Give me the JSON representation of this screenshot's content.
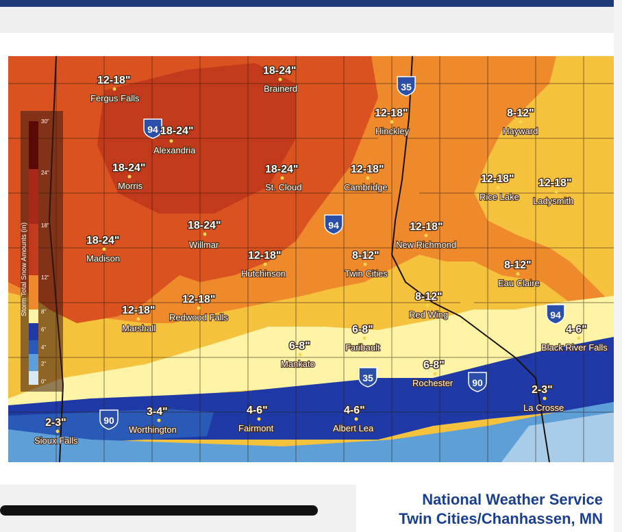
{
  "header": {
    "partial_text": ""
  },
  "legend": {
    "title": "Storm Total Snow Amounts (in)",
    "ticks": [
      "30\"",
      "24\"",
      "18\"",
      "12\"",
      "8\"",
      "6\"",
      "4\"",
      "2\"",
      "0\""
    ]
  },
  "locations": [
    {
      "city": "Fergus Falls",
      "amount": "12-18\""
    },
    {
      "city": "Brainerd",
      "amount": "18-24\""
    },
    {
      "city": "Alexandria",
      "amount": "18-24\""
    },
    {
      "city": "Hinckley",
      "amount": "12-18\""
    },
    {
      "city": "Hayward",
      "amount": "8-12\""
    },
    {
      "city": "Morris",
      "amount": "18-24\""
    },
    {
      "city": "St. Cloud",
      "amount": "18-24\""
    },
    {
      "city": "Cambridge",
      "amount": "12-18\""
    },
    {
      "city": "Rice Lake",
      "amount": "12-18\""
    },
    {
      "city": "Ladysmith",
      "amount": "12-18\""
    },
    {
      "city": "Willmar",
      "amount": "18-24\""
    },
    {
      "city": "New Richmond",
      "amount": "12-18\""
    },
    {
      "city": "Madison",
      "amount": "18-24\""
    },
    {
      "city": "Hutchinson",
      "amount": "12-18\""
    },
    {
      "city": "Twin Cities",
      "amount": "8-12\""
    },
    {
      "city": "Eau Claire",
      "amount": "8-12\""
    },
    {
      "city": "Redwood Falls",
      "amount": "12-18\""
    },
    {
      "city": "Marshall",
      "amount": "12-18\""
    },
    {
      "city": "Red Wing",
      "amount": "8-12\""
    },
    {
      "city": "Faribault",
      "amount": "6-8\""
    },
    {
      "city": "Black River Falls",
      "amount": "4-6\""
    },
    {
      "city": "Mankato",
      "amount": "6-8\""
    },
    {
      "city": "Rochester",
      "amount": "6-8\""
    },
    {
      "city": "La Crosse",
      "amount": "2-3\""
    },
    {
      "city": "Sioux Falls",
      "amount": "2-3\""
    },
    {
      "city": "Worthington",
      "amount": "3-4\""
    },
    {
      "city": "Fairmont",
      "amount": "4-6\""
    },
    {
      "city": "Albert Lea",
      "amount": "4-6\""
    }
  ],
  "highways": [
    "35",
    "94",
    "94",
    "94",
    "35",
    "90",
    "90",
    "94"
  ],
  "footer": {
    "org": "National Weather Service",
    "office": "Twin Cities/Chanhassen, MN"
  },
  "colors": {
    "band_24_30": "#c23a1c",
    "band_18_24": "#d9521f",
    "band_12_18": "#ee8a2b",
    "band_8_12": "#f5c23e",
    "band_6_8": "#fff3a6",
    "band_4_6": "#1f3aa6",
    "band_3_4": "#2a5ab8",
    "band_2_3": "#5f9fd8",
    "band_0_2": "#a9cde8"
  }
}
